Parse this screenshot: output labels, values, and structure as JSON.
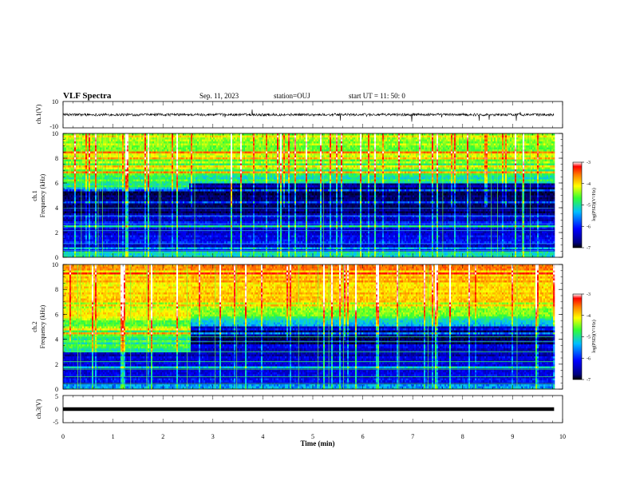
{
  "header": {
    "title": "VLF Spectra",
    "date": "Sep. 11, 2023",
    "station": "station=OUJ",
    "start": "start UT =  11: 50: 0"
  },
  "colors": {
    "colormap": [
      "#000000",
      "#00007f",
      "#0000ff",
      "#00bfff",
      "#33ff33",
      "#ffff00",
      "#ff8000",
      "#ff0000",
      "#ffffff"
    ]
  },
  "chart_data": [
    {
      "type": "line",
      "panel": "waveform-ch1",
      "ylabel": "ch.1(V)",
      "ylim": [
        -10,
        10
      ],
      "ytick_labels": [
        "10",
        "-10"
      ],
      "x_range_min": [
        0,
        9.83
      ],
      "approx_level": 0,
      "approx_amplitude": 1
    },
    {
      "type": "heatmap",
      "panel": "spectrogram-ch1",
      "ylabel": "ch.1\nFrequency (kHz)",
      "ylim": [
        0,
        10
      ],
      "ytick_labels": [
        "0",
        "2",
        "4",
        "6",
        "8",
        "10"
      ],
      "x_range_min": [
        0,
        9.83
      ],
      "dark_band_top_khz_first": 5.5,
      "dark_band_top_khz_after_2_5min": 6.0,
      "colorbar": {
        "label": "log(PSD)(V²/Hz)",
        "range": [
          -7,
          -3
        ],
        "tick_labels": [
          "-3",
          "-4",
          "-5",
          "-6",
          "-7"
        ]
      }
    },
    {
      "type": "heatmap",
      "panel": "spectrogram-ch2",
      "ylabel": "ch.2\nFrequency (kHz)",
      "ylim": [
        0,
        10
      ],
      "ytick_labels": [
        "0",
        "2",
        "4",
        "6",
        "8",
        "10"
      ],
      "x_range_min": [
        0,
        9.83
      ],
      "regime_change_min": 2.55,
      "colorbar": {
        "label": "log(PSD)(V²/Hz)",
        "range": [
          -7,
          -3
        ],
        "tick_labels": [
          "-3",
          "-4",
          "-5",
          "-6",
          "-7"
        ]
      }
    },
    {
      "type": "line",
      "panel": "waveform-ch3",
      "ylabel": "ch.3(V)",
      "ylim": [
        -5,
        5
      ],
      "ytick_labels": [
        "5",
        "0",
        "-5"
      ],
      "x_range_min": [
        0,
        9.83
      ],
      "approx_level": 0
    }
  ],
  "xaxis": {
    "label": "Time (min)",
    "range": [
      0,
      10
    ],
    "tick_labels": [
      "0",
      "1",
      "2",
      "3",
      "4",
      "5",
      "6",
      "7",
      "8",
      "9",
      "10"
    ]
  }
}
